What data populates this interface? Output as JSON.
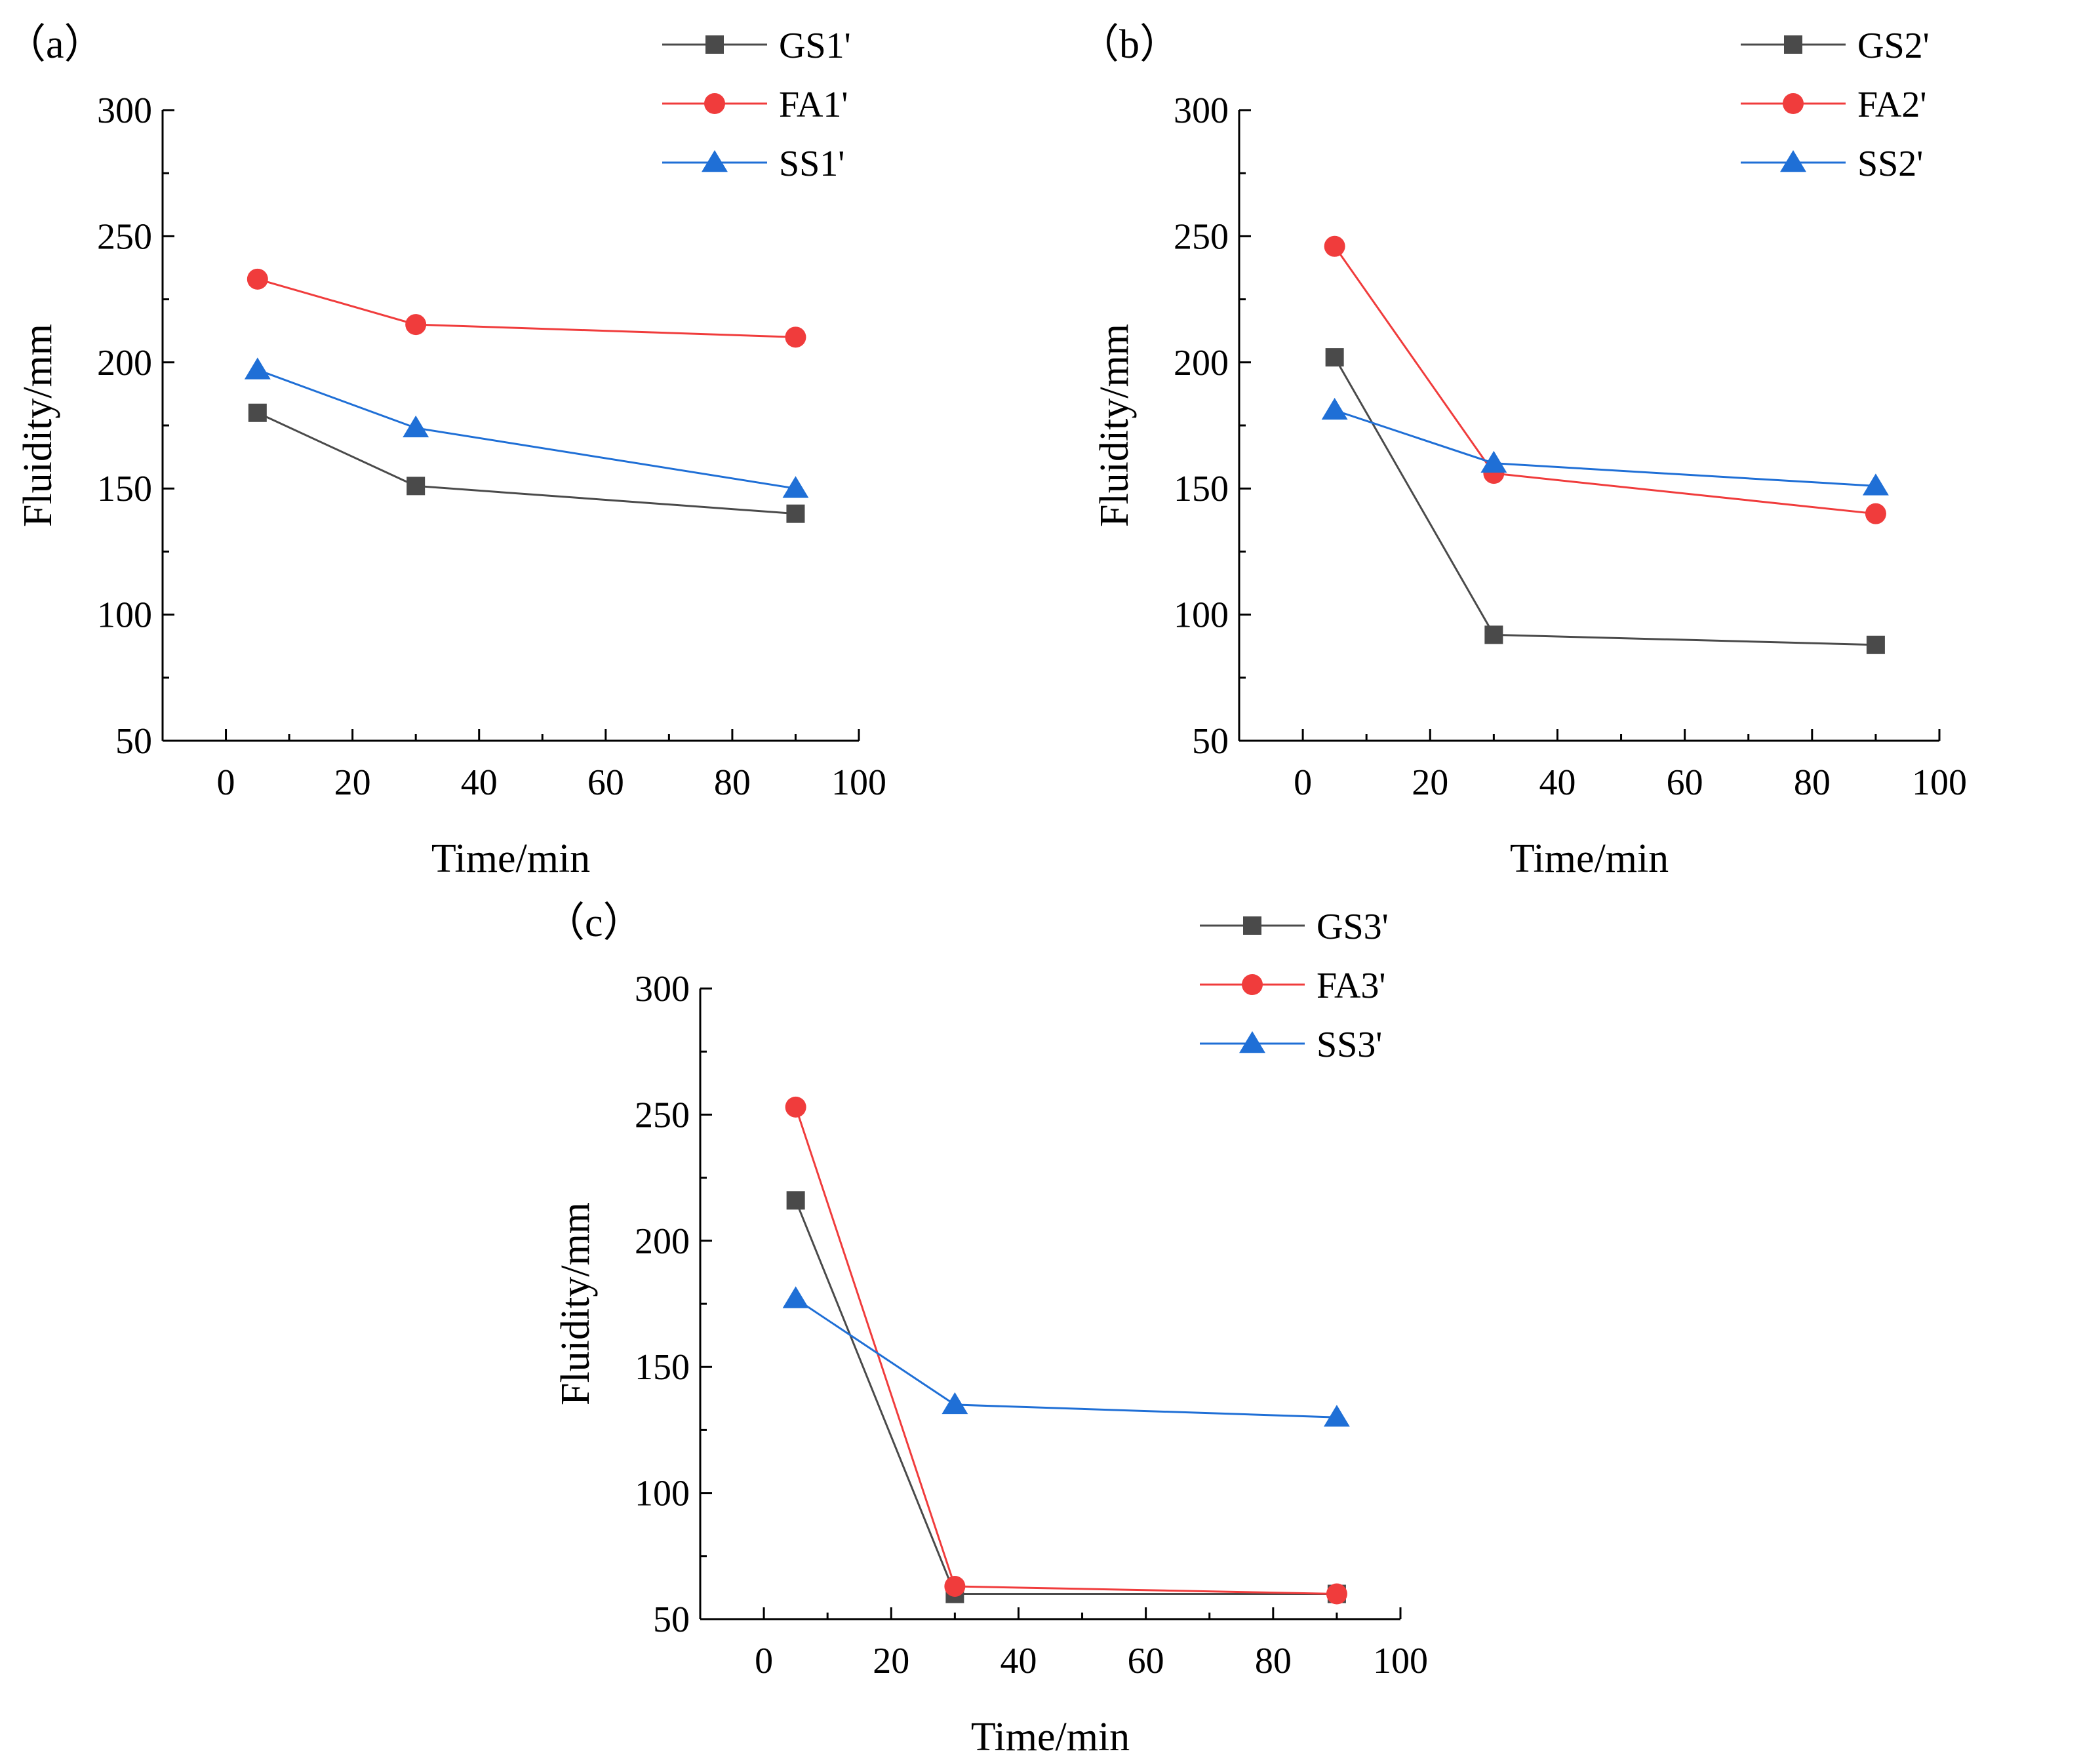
{
  "figure_title": "",
  "chart_data": [
    {
      "type": "line",
      "panel_label": "（a）",
      "xlabel": "Time/min",
      "ylabel": "Fluidity/mm",
      "xlim": [
        -10,
        100
      ],
      "ylim": [
        50,
        300
      ],
      "xticks": [
        0,
        20,
        40,
        60,
        80,
        100
      ],
      "yticks": [
        50,
        100,
        150,
        200,
        250,
        300
      ],
      "legend_position": "top-right",
      "x": [
        5,
        30,
        90
      ],
      "series": [
        {
          "name": "GS1'",
          "values": [
            180,
            151,
            140
          ],
          "color": "#4a4a4a",
          "marker": "square"
        },
        {
          "name": "FA1'",
          "values": [
            233,
            215,
            210
          ],
          "color": "#f03c3c",
          "marker": "circle"
        },
        {
          "name": "SS1'",
          "values": [
            197,
            174,
            150
          ],
          "color": "#1f6fd6",
          "marker": "triangle"
        }
      ]
    },
    {
      "type": "line",
      "panel_label": "（b）",
      "xlabel": "Time/min",
      "ylabel": "Fluidity/mm",
      "xlim": [
        -10,
        100
      ],
      "ylim": [
        50,
        300
      ],
      "xticks": [
        0,
        20,
        40,
        60,
        80,
        100
      ],
      "yticks": [
        50,
        100,
        150,
        200,
        250,
        300
      ],
      "legend_position": "top-right",
      "x": [
        5,
        30,
        90
      ],
      "series": [
        {
          "name": "GS2'",
          "values": [
            202,
            92,
            88
          ],
          "color": "#4a4a4a",
          "marker": "square"
        },
        {
          "name": "FA2'",
          "values": [
            246,
            156,
            140
          ],
          "color": "#f03c3c",
          "marker": "circle"
        },
        {
          "name": "SS2'",
          "values": [
            181,
            160,
            151
          ],
          "color": "#1f6fd6",
          "marker": "triangle"
        }
      ]
    },
    {
      "type": "line",
      "panel_label": "（c）",
      "xlabel": "Time/min",
      "ylabel": "Fluidity/mm",
      "xlim": [
        -10,
        100
      ],
      "ylim": [
        50,
        300
      ],
      "xticks": [
        0,
        20,
        40,
        60,
        80,
        100
      ],
      "yticks": [
        50,
        100,
        150,
        200,
        250,
        300
      ],
      "legend_position": "top-right",
      "x": [
        5,
        30,
        90
      ],
      "series": [
        {
          "name": "GS3'",
          "values": [
            216,
            60,
            60
          ],
          "color": "#4a4a4a",
          "marker": "square"
        },
        {
          "name": "FA3'",
          "values": [
            253,
            63,
            60
          ],
          "color": "#f03c3c",
          "marker": "circle"
        },
        {
          "name": "SS3'",
          "values": [
            177,
            135,
            130
          ],
          "color": "#1f6fd6",
          "marker": "triangle"
        }
      ]
    }
  ]
}
